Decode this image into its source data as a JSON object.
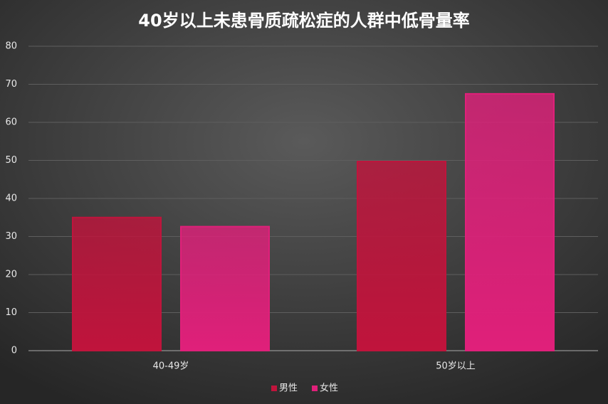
{
  "chart_data": {
    "type": "bar",
    "title": "40岁以上未患骨质疏松症的人群中低骨量率",
    "categories": [
      "40-49岁",
      "50岁以上"
    ],
    "series": [
      {
        "name": "男性",
        "color": "#c0143c",
        "values": [
          35,
          49.7
        ]
      },
      {
        "name": "女性",
        "color": "#e0207a",
        "values": [
          32.6,
          67.5
        ]
      }
    ],
    "ylim": [
      0,
      80
    ],
    "yticks": [
      0,
      10,
      20,
      30,
      40,
      50,
      60,
      70,
      80
    ],
    "grid": true,
    "legend": "bottom"
  }
}
